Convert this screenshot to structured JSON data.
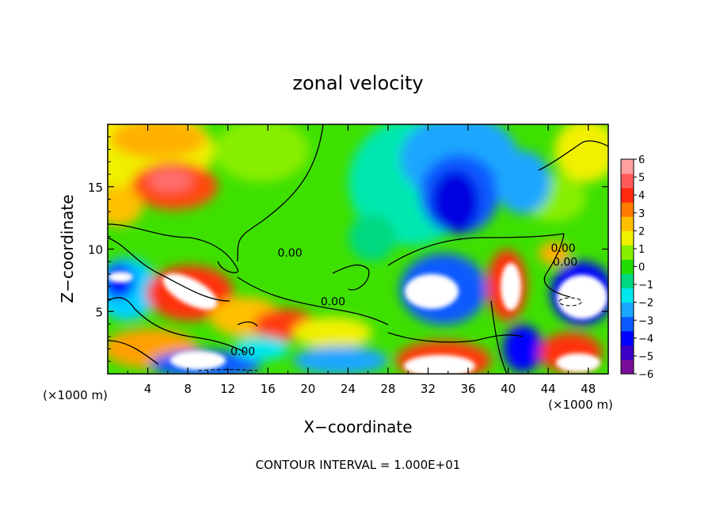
{
  "chart_data": {
    "type": "heatmap",
    "title": "zonal velocity",
    "xlabel": "X−coordinate",
    "ylabel": "Z−coordinate",
    "x_unit": "(×1000 m)",
    "y_unit": "(×1000 m)",
    "xlim": [
      0,
      50
    ],
    "ylim": [
      0,
      20
    ],
    "x_ticks": [
      4,
      8,
      12,
      16,
      20,
      24,
      28,
      32,
      36,
      40,
      44,
      48
    ],
    "y_ticks": [
      5,
      10,
      15
    ],
    "x_tick_labels": [
      "4",
      "8",
      "12",
      "16",
      "20",
      "24",
      "28",
      "32",
      "36",
      "40",
      "44",
      "48"
    ],
    "y_tick_labels": [
      "5",
      "10",
      "15"
    ],
    "colorbar": {
      "min": -6,
      "max": 6,
      "ticks": [
        6,
        5,
        4,
        3,
        2,
        1,
        0,
        -1,
        -2,
        -3,
        -4,
        -5,
        -6
      ],
      "tick_labels": [
        "6",
        "5",
        "4",
        "3",
        "2",
        "1",
        "0",
        "−1",
        "−2",
        "−3",
        "−4",
        "−5",
        "−6"
      ],
      "colors": [
        "#7a0e9a",
        "#3a00c8",
        "#0000ff",
        "#0a5aff",
        "#1aa6ff",
        "#00e8ec",
        "#00d880",
        "#22dc00",
        "#88ee00",
        "#f0f000",
        "#ffc000",
        "#ff7a00",
        "#ff2a10",
        "#ff5a5a",
        "#ffa0a0"
      ]
    },
    "contour_labels": [
      {
        "text": "0.00",
        "x": 18.2,
        "y": 9.7
      },
      {
        "text": "0.00",
        "x": 45.5,
        "y": 10.1
      },
      {
        "text": "0.00",
        "x": 45.7,
        "y": 9.0
      },
      {
        "text": "0.00",
        "x": 22.5,
        "y": 5.8
      },
      {
        "text": "0.00",
        "x": 13.5,
        "y": 1.8
      }
    ],
    "annotation": "CONTOUR INTERVAL = 1.000E+01",
    "grid": false
  }
}
